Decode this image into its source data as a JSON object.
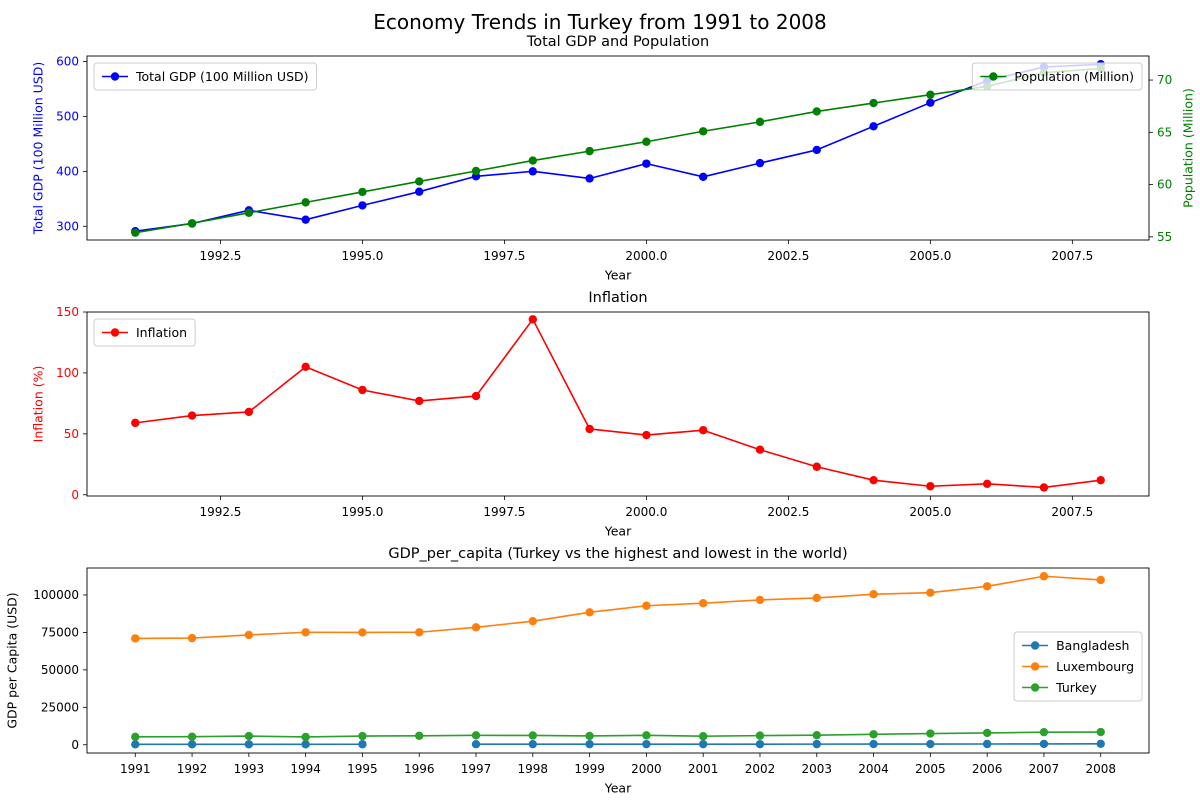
{
  "figure_title": "Economy Trends in Turkey from 1991 to 2008",
  "colors": {
    "gdp": "#0000ff",
    "population": "#008000",
    "inflation": "#ff0000",
    "bangladesh": "#1f77b4",
    "luxembourg": "#ff7f0e",
    "turkey": "#2ca02c"
  },
  "chart_data": [
    {
      "type": "line",
      "title": "Total GDP and Population",
      "xlabel": "Year",
      "ylabel": "Total GDP (100 Million USD)",
      "y2label": "Population (Million)",
      "xlim": [
        1990.15,
        2008.85
      ],
      "ylim": [
        275,
        610
      ],
      "y2lim": [
        54.7,
        72.3
      ],
      "x_ticks": [
        1992.5,
        1995.0,
        1997.5,
        2000.0,
        2002.5,
        2005.0,
        2007.5
      ],
      "x_tick_labels": [
        "1992.5",
        "1995.0",
        "1997.5",
        "2000.0",
        "2002.5",
        "2005.0",
        "2007.5"
      ],
      "y_ticks": [
        300,
        400,
        500,
        600
      ],
      "y_tick_labels": [
        "300",
        "400",
        "500",
        "600"
      ],
      "y2_ticks": [
        55,
        60,
        65,
        70
      ],
      "y2_tick_labels": [
        "55",
        "60",
        "65",
        "70"
      ],
      "x": [
        1991,
        1992,
        1993,
        1994,
        1995,
        1996,
        1997,
        1998,
        1999,
        2000,
        2001,
        2002,
        2003,
        2004,
        2005,
        2006,
        2007,
        2008
      ],
      "series": [
        {
          "name": "Total GDP (100 Million USD)",
          "axis": "left",
          "color_key": "gdp",
          "values": [
            291,
            305,
            329,
            312,
            338,
            363,
            391,
            400,
            387,
            414,
            390,
            415,
            439,
            482,
            525,
            565,
            590,
            595
          ]
        },
        {
          "name": "Population (Million)",
          "axis": "right",
          "color_key": "population",
          "values": [
            55.4,
            56.3,
            57.3,
            58.3,
            59.3,
            60.3,
            61.3,
            62.3,
            63.2,
            64.1,
            65.1,
            66.0,
            67.0,
            67.8,
            68.6,
            69.4,
            70.7,
            71.1
          ]
        }
      ],
      "legends": [
        {
          "labels": [
            "Total GDP (100 Million USD)"
          ],
          "placement": "upper-left"
        },
        {
          "labels": [
            "Population (Million)"
          ],
          "placement": "upper-right"
        }
      ]
    },
    {
      "type": "line",
      "title": "Inflation",
      "xlabel": "Year",
      "ylabel": "Inflation (%)",
      "xlim": [
        1990.15,
        2008.85
      ],
      "ylim": [
        -1,
        150
      ],
      "x_ticks": [
        1992.5,
        1995.0,
        1997.5,
        2000.0,
        2002.5,
        2005.0,
        2007.5
      ],
      "x_tick_labels": [
        "1992.5",
        "1995.0",
        "1997.5",
        "2000.0",
        "2002.5",
        "2005.0",
        "2007.5"
      ],
      "y_ticks": [
        0,
        50,
        100,
        150
      ],
      "y_tick_labels": [
        "0",
        "50",
        "100",
        "150"
      ],
      "x": [
        1991,
        1992,
        1993,
        1994,
        1995,
        1996,
        1997,
        1998,
        1999,
        2000,
        2001,
        2002,
        2003,
        2004,
        2005,
        2006,
        2007,
        2008
      ],
      "series": [
        {
          "name": "Inflation",
          "color_key": "inflation",
          "values": [
            59,
            65,
            68,
            105,
            86,
            77,
            81,
            144,
            54,
            49,
            53,
            37,
            23,
            12,
            7,
            9,
            6,
            12
          ]
        }
      ],
      "legends": [
        {
          "labels": [
            "Inflation"
          ],
          "placement": "upper-left"
        }
      ]
    },
    {
      "type": "line",
      "title": "GDP_per_capita (Turkey vs the highest and lowest in the world)",
      "xlabel": "Year",
      "ylabel": "GDP per Capita (USD)",
      "xlim": [
        1990.15,
        2008.85
      ],
      "ylim": [
        -5500,
        118000
      ],
      "x_ticks": [
        1991,
        1992,
        1993,
        1994,
        1995,
        1996,
        1997,
        1998,
        1999,
        2000,
        2001,
        2002,
        2003,
        2004,
        2005,
        2006,
        2007,
        2008
      ],
      "x_tick_labels": [
        "1991",
        "1992",
        "1993",
        "1994",
        "1995",
        "1996",
        "1997",
        "1998",
        "1999",
        "2000",
        "2001",
        "2002",
        "2003",
        "2004",
        "2005",
        "2006",
        "2007",
        "2008"
      ],
      "y_ticks": [
        0,
        25000,
        50000,
        75000,
        100000
      ],
      "y_tick_labels": [
        "0",
        "25000",
        "50000",
        "75000",
        "100000"
      ],
      "x": [
        1991,
        1992,
        1993,
        1994,
        1995,
        1996,
        1997,
        1998,
        1999,
        2000,
        2001,
        2002,
        2003,
        2004,
        2005,
        2006,
        2007,
        2008
      ],
      "series": [
        {
          "name": "Bangladesh",
          "color_key": "bangladesh",
          "values": [
            300,
            310,
            320,
            330,
            340,
            null,
            380,
            390,
            400,
            410,
            400,
            410,
            420,
            450,
            480,
            500,
            560,
            640
          ]
        },
        {
          "name": "Luxembourg",
          "color_key": "luxembourg",
          "values": [
            71000,
            71200,
            73300,
            75100,
            75000,
            75100,
            78400,
            82500,
            88400,
            92800,
            94500,
            96700,
            98000,
            100500,
            101500,
            105800,
            112500,
            110000
          ]
        },
        {
          "name": "Turkey",
          "color_key": "turkey",
          "values": [
            5300,
            5400,
            5800,
            5200,
            5800,
            6000,
            6300,
            6200,
            5900,
            6300,
            5700,
            6100,
            6400,
            7000,
            7500,
            7900,
            8400,
            8500
          ]
        }
      ],
      "legends": [
        {
          "labels": [
            "Bangladesh",
            "Luxembourg",
            "Turkey"
          ],
          "placement": "center-right"
        }
      ]
    }
  ]
}
